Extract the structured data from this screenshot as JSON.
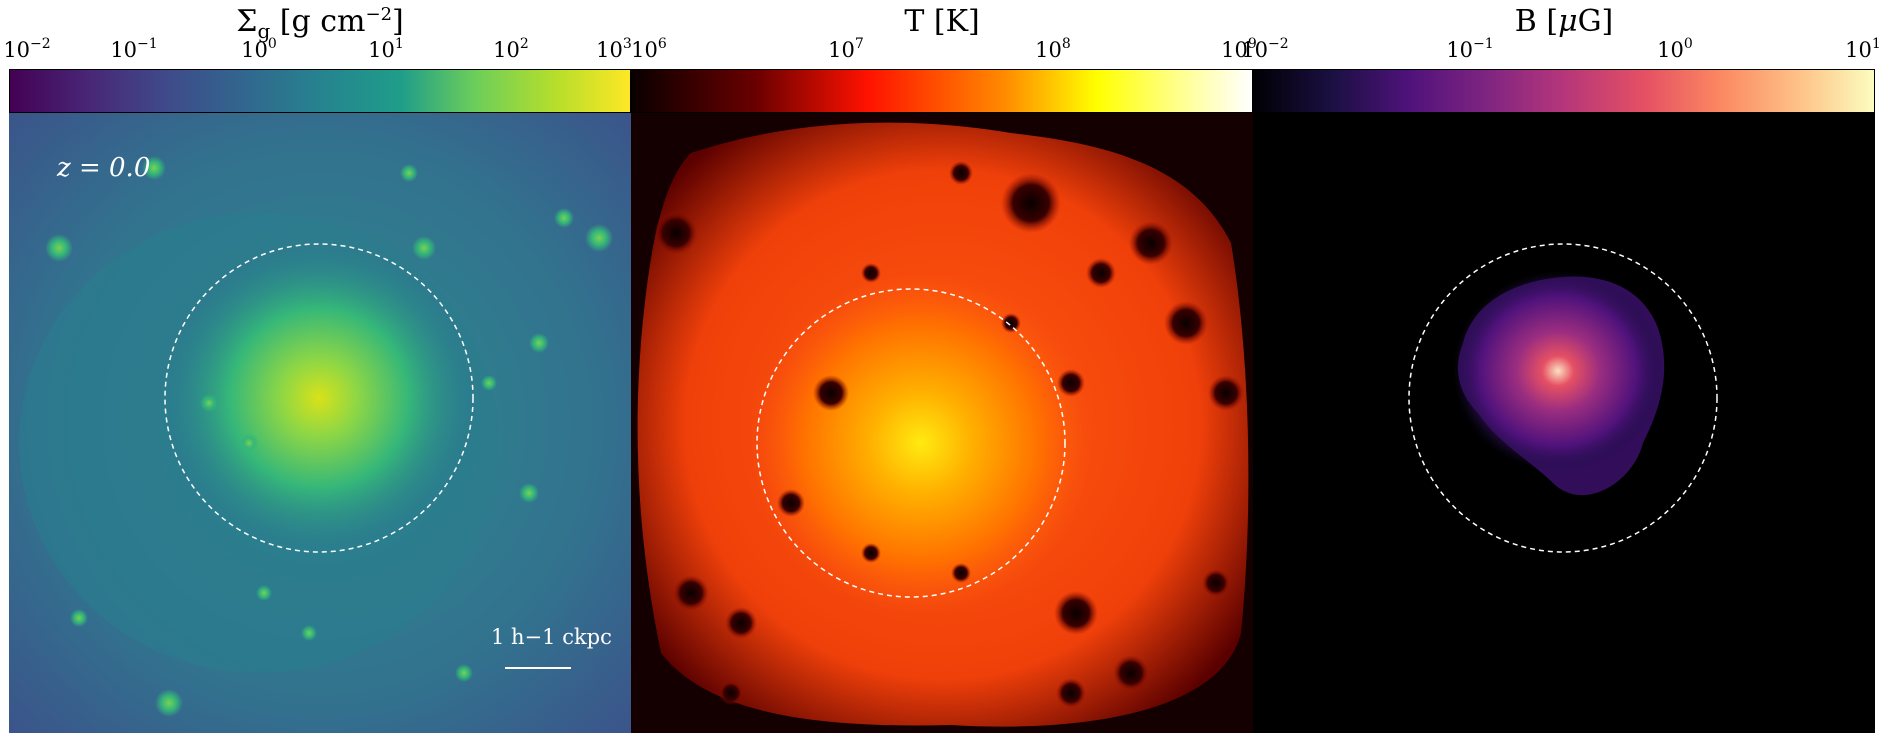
{
  "panels": [
    {
      "id": "gas-density",
      "colorbar_title": "Σg [g cm−2]",
      "colorbar_title_base": "Σ",
      "colorbar_title_sub": "g",
      "colorbar_title_unit": " [g cm",
      "colorbar_title_exp": "−2",
      "colorbar_title_end": "]",
      "colormap": "viridis",
      "scale": "log",
      "ticks": [
        {
          "base": "10",
          "exp": "−2",
          "value": 0.01
        },
        {
          "base": "10",
          "exp": "−1",
          "value": 0.1
        },
        {
          "base": "10",
          "exp": "0",
          "value": 1
        },
        {
          "base": "10",
          "exp": "1",
          "value": 10
        },
        {
          "base": "10",
          "exp": "2",
          "value": 100
        },
        {
          "base": "10",
          "exp": "3",
          "value": 1000
        }
      ],
      "range": [
        0.01,
        1000
      ]
    },
    {
      "id": "temperature",
      "colorbar_title": "T [K]",
      "colormap": "hot",
      "scale": "log",
      "ticks": [
        {
          "base": "10",
          "exp": "6",
          "value": 1000000
        },
        {
          "base": "10",
          "exp": "7",
          "value": 10000000
        },
        {
          "base": "10",
          "exp": "8",
          "value": 100000000
        },
        {
          "base": "10",
          "exp": "9",
          "value": 1000000000
        }
      ],
      "range": [
        1000000,
        1000000000
      ]
    },
    {
      "id": "magnetic-field",
      "colorbar_title": "B [μG]",
      "colorbar_title_pre": "B [",
      "colorbar_title_mu": "μ",
      "colorbar_title_post": "G]",
      "colormap": "magma",
      "scale": "log",
      "ticks": [
        {
          "base": "10",
          "exp": "−2",
          "value": 0.01
        },
        {
          "base": "10",
          "exp": "−1",
          "value": 0.1
        },
        {
          "base": "10",
          "exp": "0",
          "value": 1
        },
        {
          "base": "10",
          "exp": "1",
          "value": 10
        }
      ],
      "range": [
        0.01,
        10
      ]
    }
  ],
  "annotations": {
    "redshift_label": "z = 0.0",
    "scalebar_label": "1 h−1 ckpc"
  },
  "colors": {
    "circle": "#ffffff",
    "viridis_low": "#440154",
    "viridis_high": "#fde725",
    "hot_low": "#000000",
    "hot_high": "#ffffff",
    "magma_low": "#000004",
    "magma_high": "#fcfdbf"
  }
}
